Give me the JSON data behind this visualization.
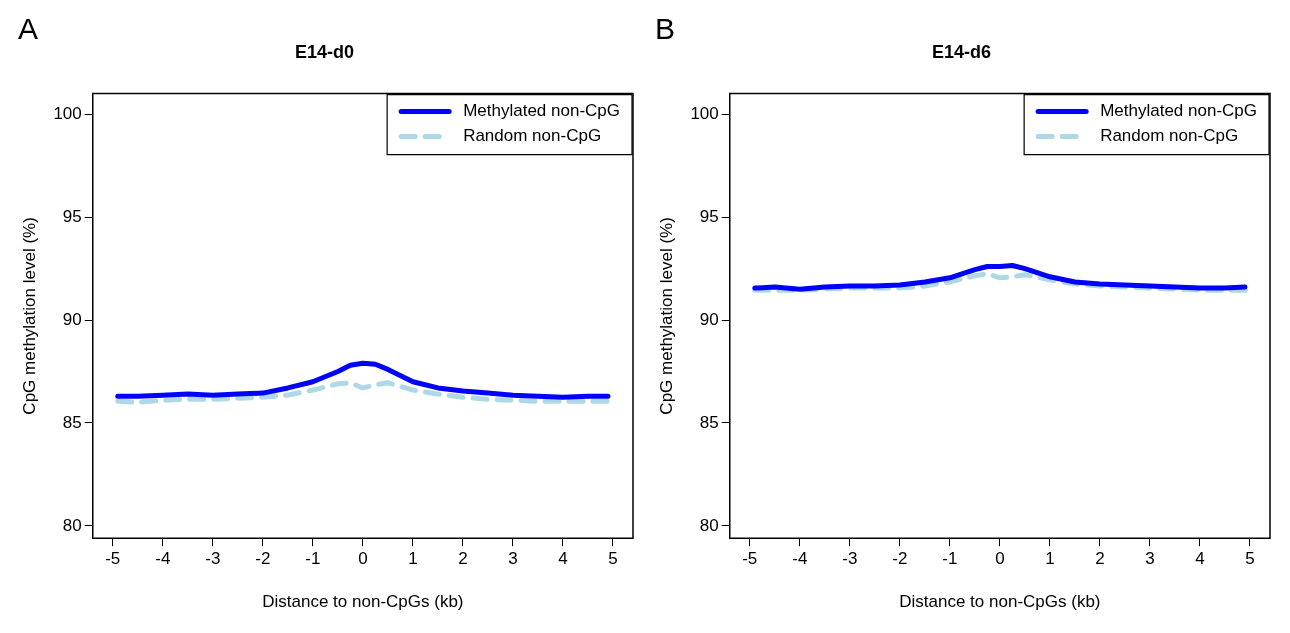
{
  "chart_data": [
    {
      "type": "line",
      "title": "E14-d0",
      "xlabel": "Distance to non-CpGs (kb)",
      "ylabel": "CpG methylation level (%)",
      "annotations": [
        "A"
      ],
      "x": [
        -4.9,
        -4.5,
        -4,
        -3.5,
        -3,
        -2.5,
        -2,
        -1.5,
        -1,
        -0.5,
        -0.25,
        0,
        0.25,
        0.5,
        1,
        1.5,
        2,
        2.5,
        3,
        3.5,
        4,
        4.5,
        4.9
      ],
      "xlim": [
        -5.4,
        5.4
      ],
      "xticks": [
        -5,
        -4,
        -3,
        -2,
        -1,
        0,
        1,
        2,
        3,
        4,
        5
      ],
      "ylim": [
        79.4,
        101
      ],
      "yticks": [
        80,
        85,
        90,
        95,
        100
      ],
      "grid": false,
      "legend": "top right",
      "marker": "none",
      "series": [
        {
          "name": "Methylated non-CpG",
          "color": "#0000ff",
          "line_style": "solid",
          "values": [
            86.3,
            86.3,
            86.35,
            86.4,
            86.35,
            86.4,
            86.45,
            86.7,
            87.0,
            87.5,
            87.8,
            87.9,
            87.85,
            87.6,
            87.0,
            86.7,
            86.55,
            86.45,
            86.35,
            86.3,
            86.25,
            86.3,
            86.3
          ]
        },
        {
          "name": "Random non-CpG",
          "color": "#add8e6",
          "line_style": "dashed",
          "values": [
            86.05,
            86.0,
            86.1,
            86.15,
            86.15,
            86.2,
            86.25,
            86.35,
            86.6,
            86.9,
            86.95,
            86.7,
            86.85,
            86.95,
            86.6,
            86.4,
            86.25,
            86.15,
            86.1,
            86.05,
            86.05,
            86.05,
            86.05
          ]
        }
      ]
    },
    {
      "type": "line",
      "title": "E14-d6",
      "xlabel": "Distance to non-CpGs (kb)",
      "ylabel": "CpG methylation level (%)",
      "annotations": [
        "B"
      ],
      "x": [
        -4.9,
        -4.5,
        -4,
        -3.5,
        -3,
        -2.5,
        -2,
        -1.5,
        -1,
        -0.5,
        -0.25,
        0,
        0.25,
        0.5,
        1,
        1.5,
        2,
        2.5,
        3,
        3.5,
        4,
        4.5,
        4.9
      ],
      "xlim": [
        -5.4,
        5.4
      ],
      "xticks": [
        -5,
        -4,
        -3,
        -2,
        -1,
        0,
        1,
        2,
        3,
        4,
        5
      ],
      "ylim": [
        79.4,
        101
      ],
      "yticks": [
        80,
        85,
        90,
        95,
        100
      ],
      "grid": false,
      "legend": "top right",
      "marker": "none",
      "series": [
        {
          "name": "Methylated non-CpG",
          "color": "#0000ff",
          "line_style": "solid",
          "values": [
            91.55,
            91.6,
            91.5,
            91.6,
            91.65,
            91.65,
            91.7,
            91.85,
            92.05,
            92.45,
            92.6,
            92.6,
            92.65,
            92.5,
            92.1,
            91.85,
            91.75,
            91.7,
            91.65,
            91.6,
            91.55,
            91.55,
            91.6
          ]
        },
        {
          "name": "Random non-CpG",
          "color": "#add8e6",
          "line_style": "dashed",
          "values": [
            91.45,
            91.45,
            91.45,
            91.5,
            91.55,
            91.55,
            91.55,
            91.65,
            91.85,
            92.15,
            92.25,
            92.05,
            92.1,
            92.2,
            91.95,
            91.75,
            91.65,
            91.6,
            91.55,
            91.5,
            91.45,
            91.45,
            91.45
          ]
        }
      ]
    }
  ]
}
